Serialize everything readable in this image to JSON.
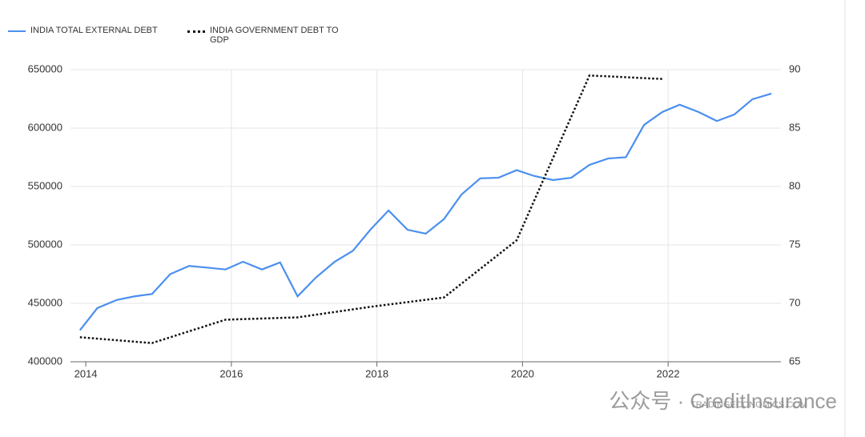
{
  "chart_data": {
    "type": "line",
    "series": [
      {
        "name": "INDIA TOTAL EXTERNAL DEBT",
        "color": "#4a8fef",
        "axis": "y",
        "x": [
          2013.92,
          2014.16,
          2014.43,
          2014.67,
          2014.91,
          2015.16,
          2015.42,
          2015.66,
          2015.92,
          2016.16,
          2016.42,
          2016.67,
          2016.91,
          2017.16,
          2017.42,
          2017.67,
          2017.91,
          2018.16,
          2018.42,
          2018.67,
          2018.92,
          2019.16,
          2019.42,
          2019.67,
          2019.92,
          2020.16,
          2020.42,
          2020.67,
          2020.92,
          2021.18,
          2021.42,
          2021.67,
          2021.92,
          2022.16,
          2022.42,
          2022.67,
          2022.91,
          2023.16,
          2023.42
        ],
        "values": [
          427000,
          446000,
          453000,
          456000,
          458000,
          475000,
          482000,
          480600,
          479000,
          485600,
          479000,
          485000,
          456000,
          472000,
          485600,
          495000,
          513000,
          529500,
          513000,
          509600,
          522000,
          543000,
          557000,
          557500,
          564000,
          559000,
          555500,
          557500,
          568500,
          574000,
          575000,
          602700,
          613700,
          620000,
          613700,
          606000,
          611600,
          624700,
          629500
        ]
      },
      {
        "name": "INDIA GOVERNMENT DEBT TO GDP",
        "color": "#111111",
        "axis": "y2",
        "dashed": true,
        "x": [
          2013.92,
          2014.91,
          2015.92,
          2016.91,
          2017.91,
          2018.92,
          2019.92,
          2020.92,
          2021.92
        ],
        "values": [
          67.1,
          66.6,
          68.6,
          68.8,
          69.7,
          70.5,
          75.4,
          89.5,
          89.2
        ]
      }
    ],
    "xlim": [
      2013.79,
      2023.55
    ],
    "xticks": [
      2014,
      2016,
      2018,
      2020,
      2022
    ],
    "ylim": [
      400000,
      650000
    ],
    "yticks": [
      400000,
      450000,
      500000,
      550000,
      600000,
      650000
    ],
    "y2lim": [
      65,
      90
    ],
    "y2ticks": [
      65,
      70,
      75,
      80,
      85,
      90
    ],
    "grid": true,
    "annotations": [
      "TRADINGECONOMICS.COM",
      "公众号 · CreditInsurance"
    ]
  }
}
